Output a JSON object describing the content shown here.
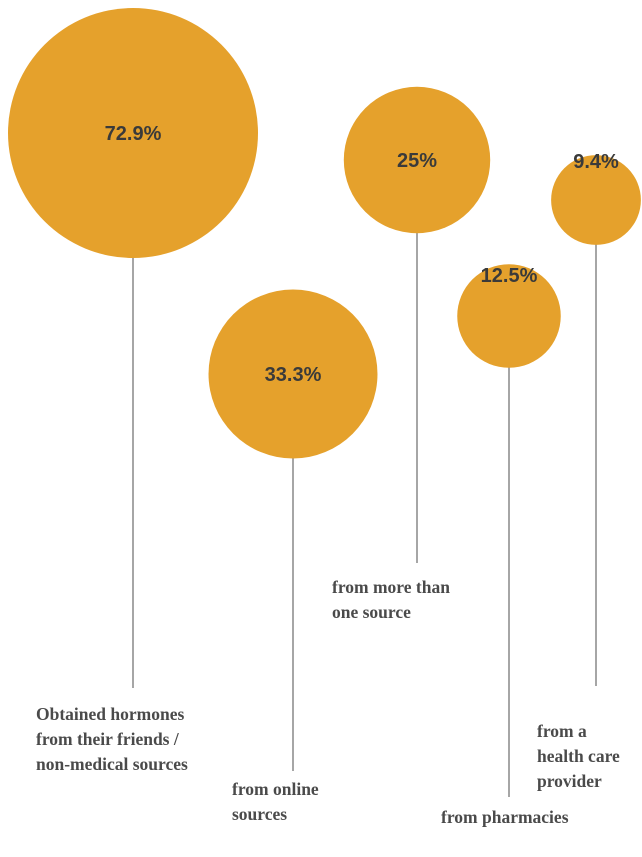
{
  "chart_data": {
    "type": "bubble",
    "accent_color": "#E5A12C",
    "line_color": "#6b6b6b",
    "text_color": "#3a3a3a",
    "items": [
      {
        "value": 72.9,
        "value_label": "72.9%",
        "label_lines": [
          "Obtained hormones",
          "from their friends /",
          "non-medical  sources"
        ]
      },
      {
        "value": 33.3,
        "value_label": "33.3%",
        "label_lines": [
          "from online",
          "sources"
        ]
      },
      {
        "value": 25,
        "value_label": "25%",
        "label_lines": [
          "from more than",
          "one source"
        ]
      },
      {
        "value": 12.5,
        "value_label": "12.5%",
        "label_lines": [
          "from pharmacies"
        ]
      },
      {
        "value": 9.4,
        "value_label": "9.4%",
        "label_lines": [
          "from a",
          "health care",
          "provider"
        ]
      }
    ]
  }
}
